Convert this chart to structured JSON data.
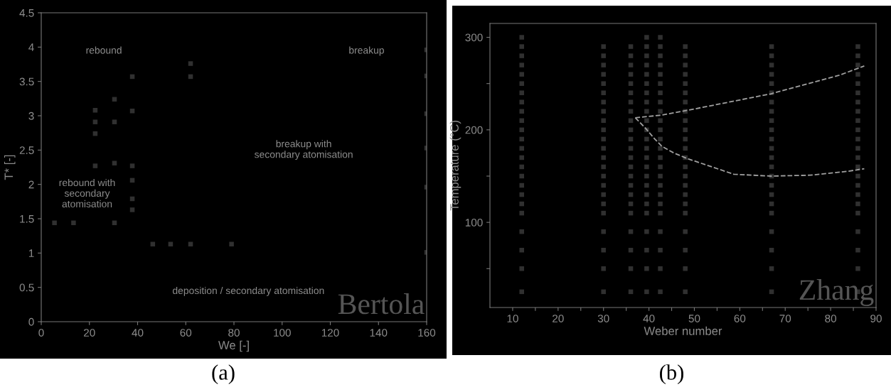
{
  "chart_data": [
    {
      "type": "scatter",
      "xlabel": "We [-]",
      "ylabel": "T* [-]",
      "xlim": [
        0,
        160
      ],
      "ylim": [
        0,
        4.5
      ],
      "xticks": [
        0,
        20,
        40,
        60,
        80,
        100,
        120,
        140,
        160
      ],
      "yticks": [
        0,
        0.5,
        1,
        1.5,
        2,
        2.5,
        3,
        3.5,
        4,
        4.5
      ],
      "marker": "square",
      "grid": false,
      "series": [
        {
          "color": "#303030",
          "x": [
            37.8,
            62,
            62,
            30.4,
            22.4,
            37.8,
            22.4,
            30.4,
            22.4,
            22.4,
            30.4,
            37.8,
            37.8,
            37.8,
            37.8,
            13.4,
            30.4,
            5.5,
            46.3,
            53.7,
            62,
            79,
            160,
            160,
            160,
            160,
            160,
            160
          ],
          "values": [
            3.57,
            3.57,
            3.76,
            3.24,
            3.08,
            3.07,
            2.91,
            2.91,
            2.74,
            2.27,
            2.31,
            2.27,
            2.06,
            1.79,
            1.63,
            1.44,
            1.44,
            1.44,
            1.13,
            1.13,
            1.13,
            1.13,
            3.96,
            3.58,
            3.03,
            2.53,
            1.96,
            1.01
          ]
        }
      ],
      "annotations": [
        "rebound",
        "breakup",
        "breakup with\nsecondary atomisation",
        "rebound with\nsecondary\natomisation",
        "deposition / secondary atomisation",
        "Bertola",
        "(a)"
      ]
    },
    {
      "type": "scatter",
      "xlabel": "Weber number",
      "ylabel": "Temperature (°C)",
      "xlim": [
        5,
        90
      ],
      "ylim": [
        8,
        315
      ],
      "xticks": [
        10,
        {
          "value": 15,
          "label": null
        },
        20,
        {
          "value": 25,
          "label": null
        },
        30,
        {
          "value": 35,
          "label": null
        },
        40,
        {
          "value": 45,
          "label": null
        },
        50,
        {
          "value": 55,
          "label": null
        },
        60,
        {
          "value": 65,
          "label": null
        },
        70,
        {
          "value": 75,
          "label": null
        },
        80,
        {
          "value": 85,
          "label": null
        },
        90
      ],
      "yticks": [
        {
          "value": 50,
          "label": null
        },
        100,
        {
          "value": 150,
          "label": null
        },
        200,
        {
          "value": 250,
          "label": null
        },
        300
      ],
      "marker": "square",
      "grid": false,
      "series": [
        {
          "color": "#303030",
          "x": [
            12,
            12,
            12,
            12,
            12,
            12,
            12,
            12,
            12,
            12,
            12,
            12,
            12,
            12,
            12,
            12,
            12,
            12,
            12,
            12,
            12,
            12,
            12,
            12
          ],
          "values": [
            25,
            50,
            70,
            90,
            110,
            120,
            130,
            140,
            150,
            160,
            170,
            180,
            190,
            200,
            210,
            220,
            230,
            240,
            250,
            260,
            270,
            280,
            290,
            300
          ]
        },
        {
          "color": "#303030",
          "x": [
            30,
            30,
            30,
            30,
            30,
            30,
            30,
            30,
            30,
            30,
            30,
            30,
            30,
            30,
            30,
            30,
            30,
            30,
            30,
            30,
            30,
            30,
            30
          ],
          "values": [
            25,
            50,
            70,
            90,
            110,
            120,
            130,
            140,
            150,
            160,
            170,
            180,
            190,
            200,
            210,
            220,
            230,
            240,
            250,
            260,
            270,
            280,
            290
          ]
        },
        {
          "color": "#303030",
          "x": [
            36,
            36,
            36,
            36,
            36,
            36,
            36,
            36,
            36,
            36,
            36,
            36,
            36,
            36,
            36,
            36,
            36,
            36,
            36,
            36,
            36,
            36,
            36
          ],
          "values": [
            25,
            50,
            70,
            90,
            110,
            120,
            130,
            140,
            150,
            160,
            170,
            180,
            190,
            200,
            210,
            220,
            230,
            240,
            250,
            260,
            270,
            280,
            290
          ]
        },
        {
          "color": "#303030",
          "x": [
            39.5,
            39.5,
            39.5,
            39.5,
            39.5,
            39.5,
            39.5,
            39.5,
            39.5,
            39.5,
            39.5,
            39.5,
            39.5,
            39.5,
            39.5,
            39.5,
            39.5,
            39.5,
            39.5,
            39.5,
            39.5,
            39.5,
            39.5,
            39.5
          ],
          "values": [
            25,
            50,
            70,
            90,
            110,
            120,
            130,
            140,
            150,
            160,
            170,
            180,
            190,
            200,
            210,
            220,
            230,
            240,
            250,
            260,
            270,
            280,
            290,
            300
          ]
        },
        {
          "color": "#303030",
          "x": [
            42.5,
            42.5,
            42.5,
            42.5,
            42.5,
            42.5,
            42.5,
            42.5,
            42.5,
            42.5,
            42.5,
            42.5,
            42.5,
            42.5,
            42.5,
            42.5,
            42.5,
            42.5,
            42.5,
            42.5,
            42.5,
            42.5,
            42.5,
            42.5
          ],
          "values": [
            25,
            50,
            70,
            90,
            110,
            120,
            130,
            140,
            150,
            160,
            170,
            180,
            190,
            200,
            210,
            220,
            230,
            240,
            250,
            260,
            270,
            280,
            290,
            300
          ]
        },
        {
          "color": "#303030",
          "x": [
            48,
            48,
            48,
            48,
            48,
            48,
            48,
            48,
            48,
            48,
            48,
            48,
            48,
            48,
            48,
            48,
            48,
            48,
            48,
            48,
            48,
            48,
            48
          ],
          "values": [
            25,
            50,
            70,
            90,
            110,
            120,
            130,
            140,
            150,
            160,
            170,
            180,
            190,
            200,
            210,
            220,
            230,
            240,
            250,
            260,
            270,
            280,
            290
          ]
        },
        {
          "color": "#303030",
          "x": [
            67,
            67,
            67,
            67,
            67,
            67,
            67,
            67,
            67,
            67,
            67,
            67,
            67,
            67,
            67,
            67,
            67,
            67,
            67,
            67,
            67,
            67,
            67
          ],
          "values": [
            25,
            50,
            70,
            90,
            110,
            120,
            130,
            140,
            150,
            160,
            170,
            180,
            190,
            200,
            210,
            220,
            230,
            240,
            250,
            260,
            270,
            280,
            290
          ]
        },
        {
          "color": "#303030",
          "x": [
            86,
            86,
            86,
            86,
            86,
            86,
            86,
            86,
            86,
            86,
            86,
            86,
            86,
            86,
            86,
            86,
            86,
            86,
            86,
            86,
            86,
            86,
            86
          ],
          "values": [
            25,
            50,
            70,
            90,
            110,
            120,
            130,
            140,
            150,
            160,
            170,
            180,
            190,
            200,
            210,
            220,
            230,
            240,
            250,
            260,
            270,
            280,
            290
          ]
        },
        {
          "type": "line",
          "line_style": "dashed",
          "marker": "none",
          "color": "#a0a0a0",
          "x": [
            37,
            42.9,
            48.4,
            66.9,
            81.9,
            87.4
          ],
          "values": [
            213,
            216,
            221,
            239,
            259,
            269
          ]
        },
        {
          "type": "line",
          "line_style": "dashed",
          "marker": "none",
          "color": "#a0a0a0",
          "x": [
            37,
            39.2,
            41.3,
            42.9,
            45.5,
            48.4,
            58.7,
            66.9,
            75.5,
            83.5,
            87.4
          ],
          "values": [
            213,
            202,
            190,
            182,
            175,
            169,
            152,
            150,
            151,
            155,
            158
          ]
        }
      ],
      "annotations": [
        "Zhang",
        "(b)"
      ]
    }
  ]
}
